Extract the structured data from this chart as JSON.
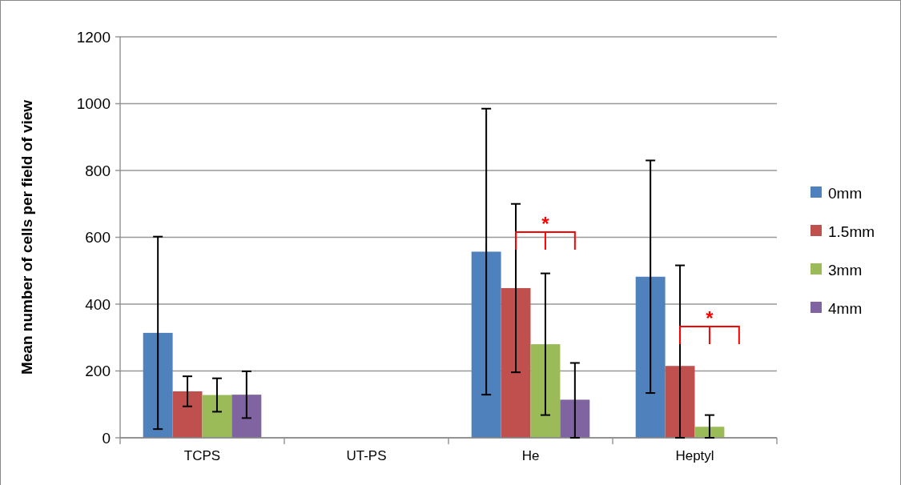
{
  "chart_data": {
    "type": "bar",
    "ylabel": "Mean number of cells per field of view",
    "categories": [
      "TCPS",
      "UT-PS",
      "He",
      "Heptyl"
    ],
    "series": [
      {
        "name": "0mm",
        "color": "#4f81bd",
        "values": [
          314,
          0,
          557,
          482
        ],
        "errors": [
          288,
          null,
          428,
          348
        ]
      },
      {
        "name": "1.5mm",
        "color": "#c0504d",
        "values": [
          139,
          0,
          448,
          215
        ],
        "errors": [
          45,
          null,
          252,
          [
            0,
            516
          ]
        ]
      },
      {
        "name": "3mm",
        "color": "#9bbb59",
        "values": [
          128,
          0,
          280,
          33
        ],
        "errors": [
          50,
          null,
          212,
          [
            0,
            68
          ]
        ]
      },
      {
        "name": "4mm",
        "color": "#8064a2",
        "values": [
          129,
          0,
          114,
          0
        ],
        "errors": [
          70,
          null,
          [
            0,
            224
          ],
          null
        ]
      }
    ],
    "ylim": [
      0,
      1200
    ],
    "yticks": [
      0,
      200,
      400,
      600,
      800,
      1000,
      1200
    ],
    "grid": "y",
    "legend": "right",
    "annotations": [
      "*",
      "*"
    ]
  }
}
